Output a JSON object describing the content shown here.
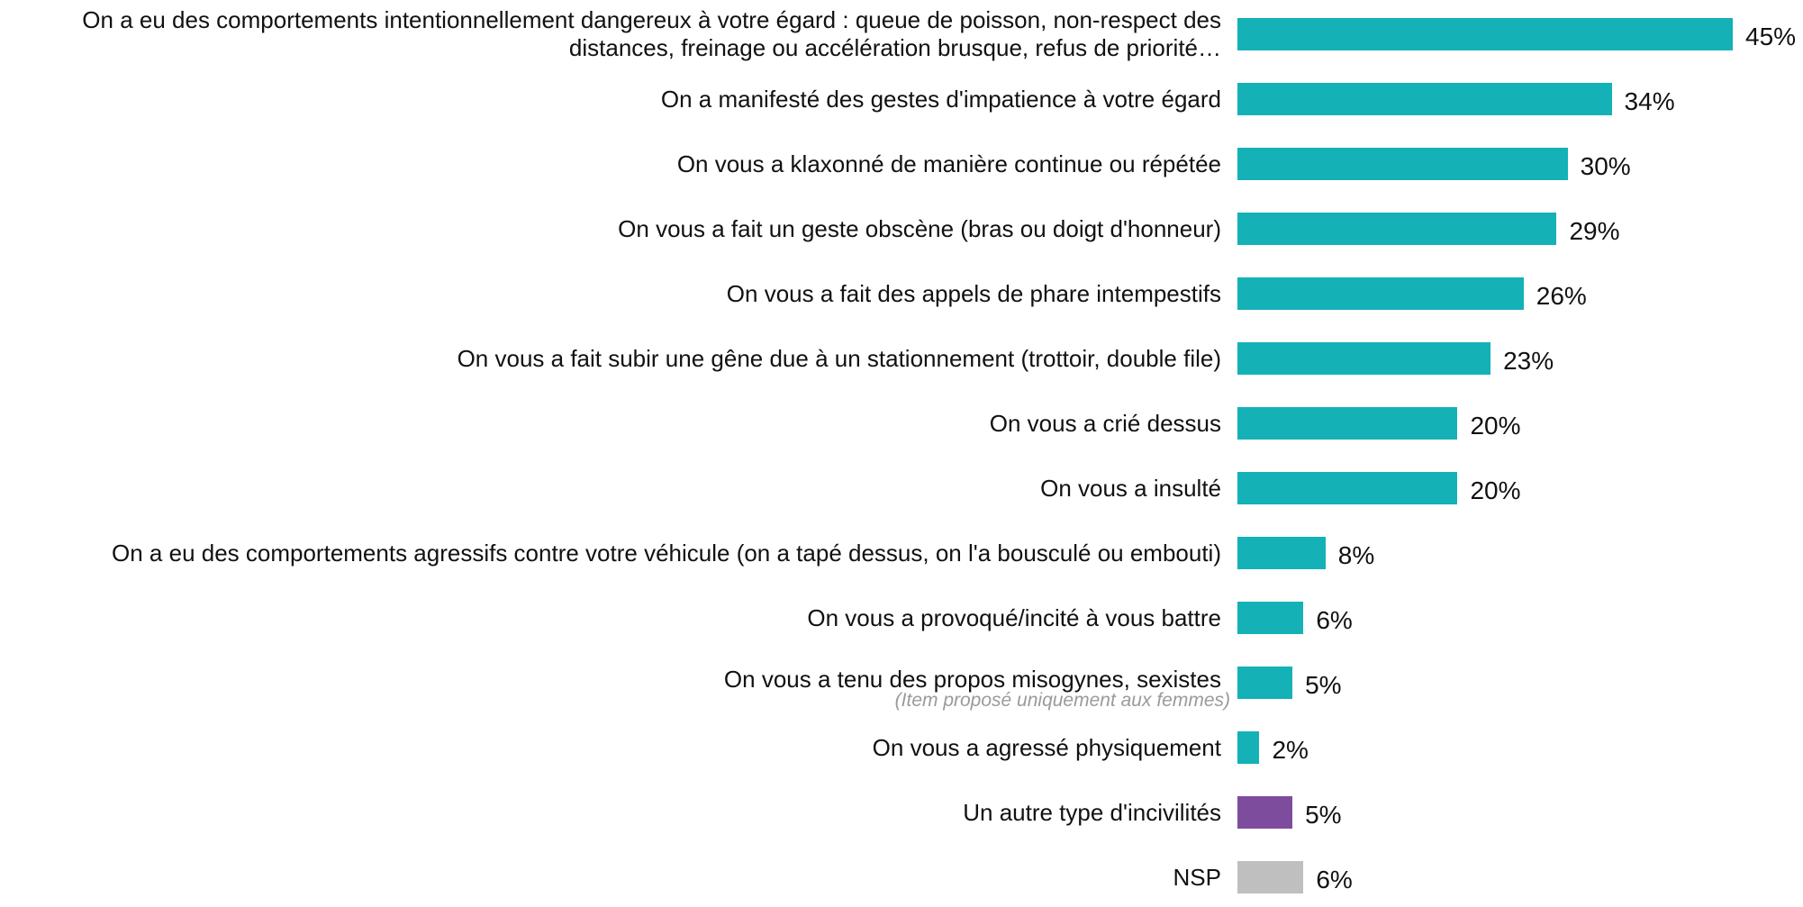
{
  "chart_data": {
    "type": "bar",
    "orientation": "horizontal",
    "categories": [
      "On a eu des comportements intentionnellement dangereux à votre égard : queue de poisson, non-respect des distances, freinage ou accélération brusque, refus de priorité…",
      "On a manifesté des gestes d'impatience à votre égard",
      "On vous a klaxonné de manière continue ou répétée",
      "On vous a fait un geste obscène (bras ou doigt d'honneur)",
      "On vous a fait des appels de phare intempestifs",
      "On vous a fait subir une gêne due à un stationnement (trottoir, double file)",
      "On vous a crié dessus",
      "On vous a insulté",
      "On a eu des comportements agressifs contre votre véhicule (on a tapé dessus, on l'a bousculé ou embouti)",
      "On vous a provoqué/incité à vous battre",
      "On vous a tenu des propos misogynes, sexistes",
      "On vous a agressé physiquement",
      "Un autre type d'incivilités",
      "NSP"
    ],
    "values": [
      45,
      34,
      30,
      29,
      26,
      23,
      20,
      20,
      8,
      6,
      5,
      2,
      5,
      6
    ],
    "value_labels": [
      "45%",
      "34%",
      "30%",
      "29%",
      "26%",
      "23%",
      "20%",
      "20%",
      "8%",
      "6%",
      "5%",
      "2%",
      "5%",
      "6%"
    ],
    "colors": [
      "#14b1b7",
      "#14b1b7",
      "#14b1b7",
      "#14b1b7",
      "#14b1b7",
      "#14b1b7",
      "#14b1b7",
      "#14b1b7",
      "#14b1b7",
      "#14b1b7",
      "#14b1b7",
      "#14b1b7",
      "#7d4c9d",
      "#bfbfbf"
    ],
    "annotation": "(Item proposé uniquement aux femmes)"
  }
}
